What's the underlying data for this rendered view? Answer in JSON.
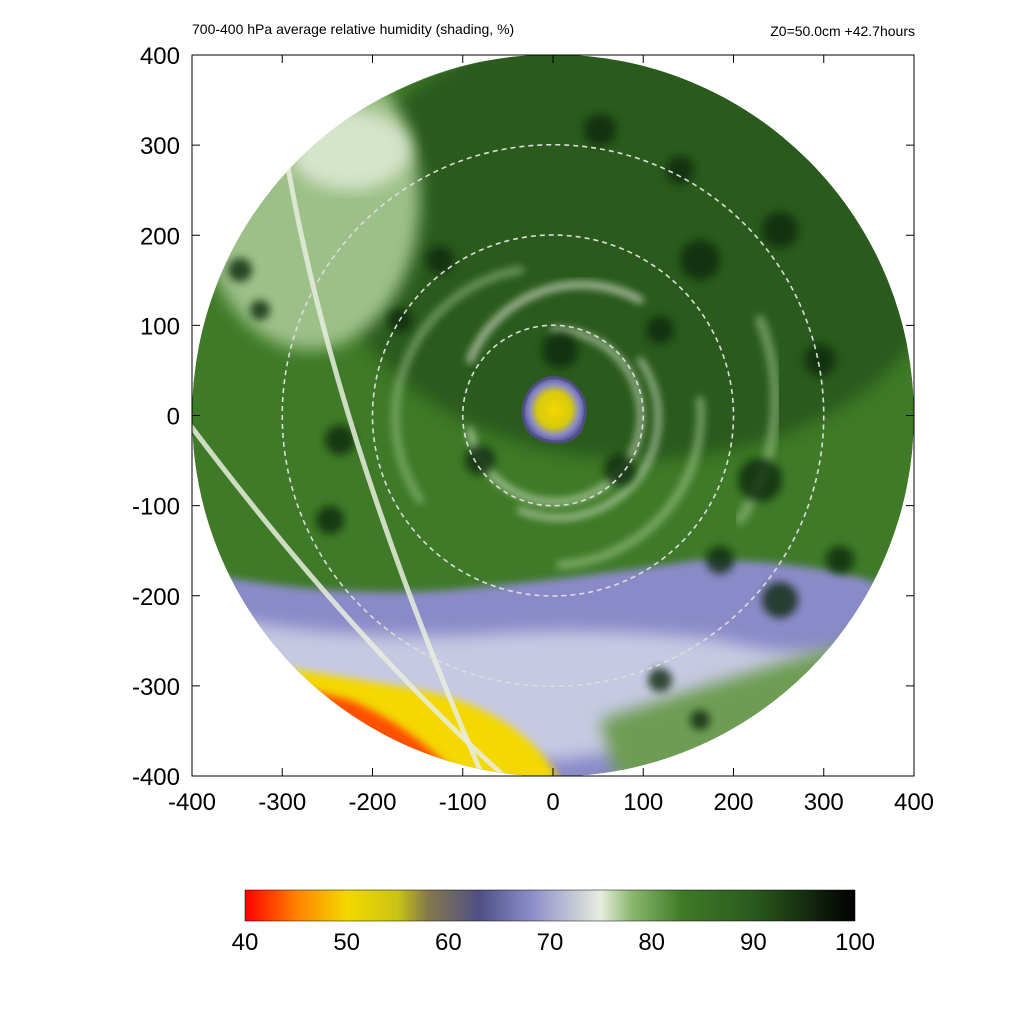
{
  "chart_data": {
    "type": "heatmap",
    "title": "700-400 hPa average relative humidity (shading, %)",
    "subtitle": "Z0=50.0cm  +42.7hours",
    "xlabel": "",
    "ylabel": "",
    "xlim": [
      -400,
      400
    ],
    "ylim": [
      -400,
      400
    ],
    "x_ticks": [
      -400,
      -300,
      -200,
      -100,
      0,
      100,
      200,
      300,
      400
    ],
    "y_ticks": [
      -400,
      -300,
      -200,
      -100,
      0,
      100,
      200,
      300,
      400
    ],
    "x_tick_labels": [
      "-400",
      "-300",
      "-200",
      "-100",
      "0",
      "100",
      "200",
      "300",
      "400"
    ],
    "y_tick_labels": [
      "-400",
      "-300",
      "-200",
      "-100",
      "0",
      "100",
      "200",
      "300",
      "400"
    ],
    "domain_radius": 400,
    "range_rings": [
      100,
      200,
      300
    ],
    "grid": false,
    "colorbar": {
      "min": 40,
      "max": 100,
      "ticks": [
        40,
        50,
        60,
        70,
        80,
        90,
        100
      ],
      "tick_labels": [
        "40",
        "50",
        "60",
        "70",
        "80",
        "90",
        "100"
      ],
      "colors": [
        "#ff0000",
        "#ff8000",
        "#f4d800",
        "#c9c414",
        "#85784a",
        "#4f4f85",
        "#8a8ac8",
        "#e7edde",
        "#8cb86e",
        "#3e7a27",
        "#2b5a1e",
        "#000000"
      ],
      "color_stops": [
        40,
        45,
        50,
        55,
        58,
        63,
        68,
        75,
        78,
        83,
        90,
        100
      ]
    },
    "features": {
      "eye_center": [
        0,
        0
      ],
      "eye_value": 55,
      "eye_ring_value": 65,
      "dry_sector_value": 48,
      "dry_band_value": 68,
      "outer_value": 83
    }
  }
}
